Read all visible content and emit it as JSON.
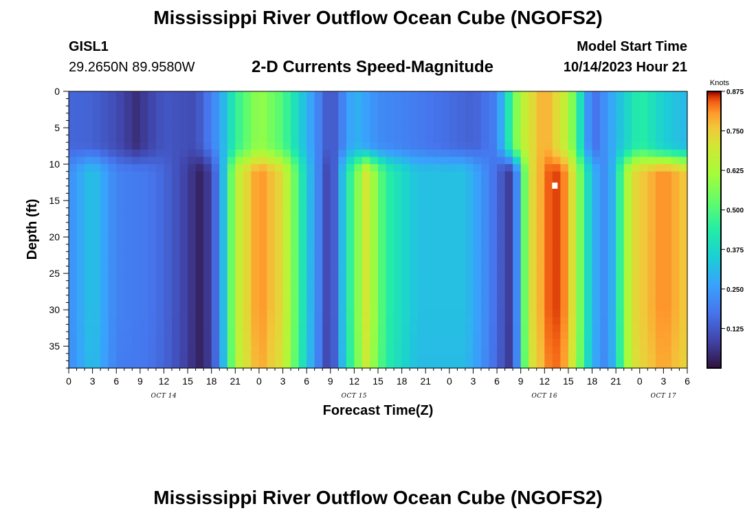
{
  "header": {
    "title": "Mississippi River Outflow Ocean Cube (NGOFS2)",
    "station_id": "GISL1",
    "coordinates": "29.2650N  89.9580W",
    "product": "2-D Currents Speed-Magnitude",
    "model_start_label": "Model Start Time",
    "model_start_value": "10/14/2023 Hour 21"
  },
  "footer": {
    "title": "Mississippi River Outflow Ocean Cube (NGOFS2)"
  },
  "chart_data": {
    "type": "heatmap",
    "xlabel": "Forecast Time(Z)",
    "ylabel": "Depth (ft)",
    "x_range_hours": [
      0,
      78
    ],
    "x_ticks": [
      "0",
      "3",
      "6",
      "9",
      "12",
      "15",
      "18",
      "21",
      "0",
      "3",
      "6",
      "9",
      "12",
      "15",
      "18",
      "21",
      "0",
      "3",
      "6",
      "9",
      "12",
      "15",
      "18",
      "21",
      "0",
      "3",
      "6"
    ],
    "date_labels": [
      {
        "label": "OCT 14",
        "hour": 12
      },
      {
        "label": "OCT 15",
        "hour": 36
      },
      {
        "label": "OCT 16",
        "hour": 60
      },
      {
        "label": "OCT 17",
        "hour": 75
      }
    ],
    "y_range_ft": [
      0,
      38
    ],
    "y_ticks": [
      0,
      5,
      10,
      15,
      20,
      25,
      30,
      35
    ],
    "colorbar": {
      "unit": "Knots",
      "min": 0,
      "max": 0.875,
      "ticks": [
        "0.875",
        "0.750",
        "0.625",
        "0.500",
        "0.375",
        "0.250",
        "0.125"
      ]
    },
    "surface_layer_speed_knots": [
      {
        "hour": 0,
        "value": 0.15
      },
      {
        "hour": 3,
        "value": 0.14
      },
      {
        "hour": 6,
        "value": 0.1
      },
      {
        "hour": 8.5,
        "value": 0.05
      },
      {
        "hour": 12,
        "value": 0.12
      },
      {
        "hour": 16,
        "value": 0.1
      },
      {
        "hour": 19,
        "value": 0.25
      },
      {
        "hour": 21,
        "value": 0.45
      },
      {
        "hour": 24,
        "value": 0.6
      },
      {
        "hour": 27,
        "value": 0.5
      },
      {
        "hour": 30,
        "value": 0.3
      },
      {
        "hour": 33,
        "value": 0.1
      },
      {
        "hour": 36,
        "value": 0.3
      },
      {
        "hour": 39,
        "value": 0.22
      },
      {
        "hour": 45,
        "value": 0.18
      },
      {
        "hour": 51,
        "value": 0.14
      },
      {
        "hour": 54,
        "value": 0.2
      },
      {
        "hour": 57,
        "value": 0.65
      },
      {
        "hour": 60,
        "value": 0.8
      },
      {
        "hour": 63,
        "value": 0.65
      },
      {
        "hour": 66,
        "value": 0.15
      },
      {
        "hour": 69,
        "value": 0.3
      },
      {
        "hour": 72,
        "value": 0.45
      },
      {
        "hour": 75,
        "value": 0.35
      },
      {
        "hour": 78,
        "value": 0.3
      }
    ],
    "lower_layer_speed_knots": [
      {
        "hour": 0,
        "value": 0.22
      },
      {
        "hour": 3,
        "value": 0.33
      },
      {
        "hour": 6,
        "value": 0.2
      },
      {
        "hour": 10,
        "value": 0.18
      },
      {
        "hour": 12,
        "value": 0.15
      },
      {
        "hour": 14,
        "value": 0.1
      },
      {
        "hour": 17,
        "value": 0.02
      },
      {
        "hour": 19,
        "value": 0.2
      },
      {
        "hour": 21,
        "value": 0.65
      },
      {
        "hour": 24,
        "value": 0.82
      },
      {
        "hour": 27,
        "value": 0.72
      },
      {
        "hour": 30,
        "value": 0.35
      },
      {
        "hour": 33,
        "value": 0.05
      },
      {
        "hour": 35,
        "value": 0.4
      },
      {
        "hour": 37.5,
        "value": 0.7
      },
      {
        "hour": 40,
        "value": 0.45
      },
      {
        "hour": 44,
        "value": 0.32
      },
      {
        "hour": 50,
        "value": 0.32
      },
      {
        "hour": 53,
        "value": 0.2
      },
      {
        "hour": 56,
        "value": 0.05
      },
      {
        "hour": 58,
        "value": 0.7
      },
      {
        "hour": 61,
        "value": 0.87
      },
      {
        "hour": 63,
        "value": 0.8
      },
      {
        "hour": 66,
        "value": 0.3
      },
      {
        "hour": 68,
        "value": 0.2
      },
      {
        "hour": 71,
        "value": 0.72
      },
      {
        "hour": 75,
        "value": 0.82
      },
      {
        "hour": 78,
        "value": 0.75
      }
    ],
    "marker": {
      "hour": 61.3,
      "depth_ft": 13
    }
  }
}
